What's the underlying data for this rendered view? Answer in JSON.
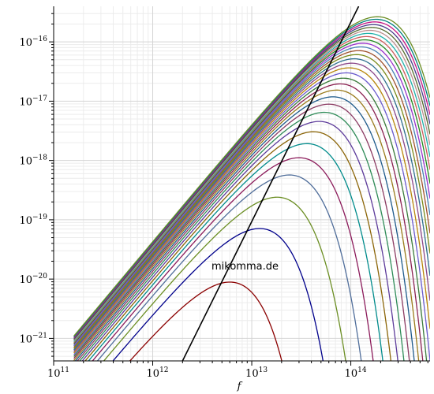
{
  "chart_data": {
    "type": "line",
    "title": "",
    "xlabel": "f",
    "ylabel": "",
    "x_scale": "log",
    "y_scale": "log",
    "xlim": [
      100000000000.0,
      631000000000000.0
    ],
    "ylim": [
      4.17e-22,
      3.98e-16
    ],
    "x_ticks": [
      {
        "value": 100000000000.0,
        "base": "10",
        "exp": "11"
      },
      {
        "value": 1000000000000.0,
        "base": "10",
        "exp": "12"
      },
      {
        "value": 10000000000000.0,
        "base": "10",
        "exp": "13"
      },
      {
        "value": 100000000000000.0,
        "base": "10",
        "exp": "14"
      }
    ],
    "y_ticks": [
      {
        "value": 1e-21,
        "base": "10",
        "exp": "−21"
      },
      {
        "value": 1e-20,
        "base": "10",
        "exp": "−20"
      },
      {
        "value": 1e-19,
        "base": "10",
        "exp": "−19"
      },
      {
        "value": 1e-18,
        "base": "10",
        "exp": "−18"
      },
      {
        "value": 1e-17,
        "base": "10",
        "exp": "−17"
      },
      {
        "value": 1e-16,
        "base": "10",
        "exp": "−16"
      }
    ],
    "grid": true,
    "legend": "none",
    "x_start": 160000000000.0,
    "series_description": "Blackbody spectral curves B(f,T) on log-log axes, one per temperature; peak frequency scales linearly with temperature",
    "series": {
      "count": 31,
      "peak_f_first": 6000000000000.0,
      "peak_f_step": 6000000000000.0,
      "peak_value_first": 8.9e-21,
      "peak_exponent": 3,
      "low_f_slope": 2
    },
    "wien_line": {
      "points": [
        [
          2000000000000.0,
          4.17e-22
        ],
        [
          120000000000000.0,
          3.98e-16
        ]
      ],
      "color": "#000000"
    },
    "colors": [
      "#8b0000",
      "#00008b",
      "#6b8e23",
      "#4f6d9a",
      "#8b1a5a",
      "#008b8b",
      "#8b6508",
      "#5c3a9a",
      "#2e8b57",
      "#8b3a62",
      "#1e5a8b",
      "#9a7a1a",
      "#8b2252",
      "#3a7a3a",
      "#6a5acd",
      "#b8860b",
      "#8b4789",
      "#2f6f8f",
      "#7a8b1a",
      "#a0522d",
      "#4682b4",
      "#9932cc",
      "#228b22",
      "#cd5c5c",
      "#20b2aa",
      "#bc8f8f",
      "#556b2f",
      "#483d8b",
      "#c71585",
      "#008080",
      "#6b8e23"
    ],
    "watermark": "mikomma.de"
  }
}
